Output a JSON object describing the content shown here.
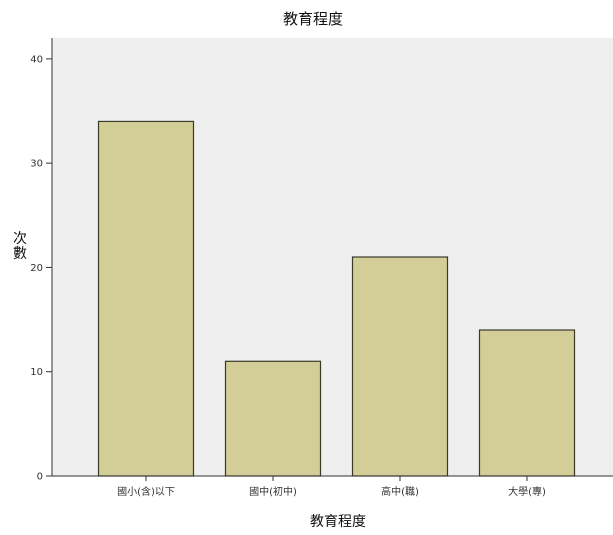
{
  "chart_data": {
    "type": "bar",
    "title": "教育程度",
    "xlabel": "教育程度",
    "ylabel": "次數",
    "categories": [
      "國小(含)以下",
      "國中(初中)",
      "高中(職)",
      "大學(專)"
    ],
    "values": [
      34,
      11,
      21,
      14
    ],
    "ylim": [
      0,
      42
    ],
    "yticks": [
      0,
      10,
      20,
      30,
      40
    ],
    "grid": false,
    "legend": "none"
  },
  "colors": {
    "plot_background": "#efefef",
    "bar_fill": "#d3ce98",
    "bar_stroke": "#3a3a2a",
    "axis": "#333333"
  }
}
